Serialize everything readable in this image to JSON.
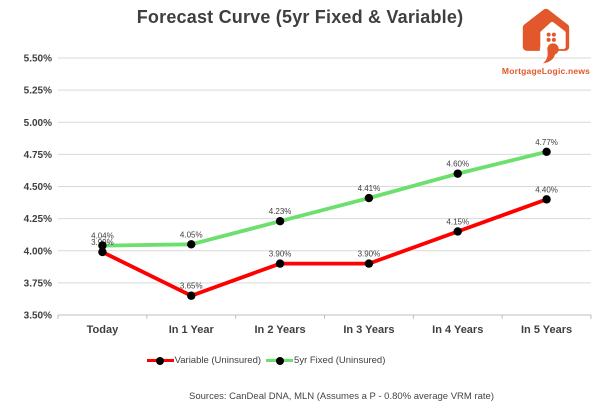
{
  "title": "Forecast Curve (5yr Fixed & Variable)",
  "logo": {
    "wordmark": "MortgageLogic.news",
    "color": "#e2572b"
  },
  "footer": {
    "sources": "Sources: CanDeal DNA, MLN (Assumes a P - 0.80% average VRM rate)"
  },
  "chart_data": {
    "type": "line",
    "title": "Forecast Curve (5yr Fixed & Variable)",
    "categories": [
      "Today",
      "In 1 Year",
      "In 2 Years",
      "In 3 Years",
      "In 4 Years",
      "In 5 Years"
    ],
    "series": [
      {
        "name": "Variable (Uninsured)",
        "values": [
          3.99,
          3.65,
          3.9,
          3.9,
          4.15,
          4.4
        ],
        "color": "#ff0000"
      },
      {
        "name": "5yr Fixed (Uninsured)",
        "values": [
          4.04,
          4.05,
          4.23,
          4.41,
          4.6,
          4.77
        ],
        "color": "#6cdf6c"
      }
    ],
    "ylim": [
      3.5,
      5.5
    ],
    "ytick_step": 0.25,
    "ytick_labels": [
      "3.50%",
      "3.75%",
      "4.00%",
      "4.25%",
      "4.50%",
      "4.75%",
      "5.00%",
      "5.25%",
      "5.50%"
    ],
    "value_suffix": "%",
    "marker_color": "#000000",
    "grid": true,
    "gridline_color": "#d9d9d9",
    "axis_color": "#bfbfbf",
    "legend_position": "bottom",
    "data_labels": true
  }
}
